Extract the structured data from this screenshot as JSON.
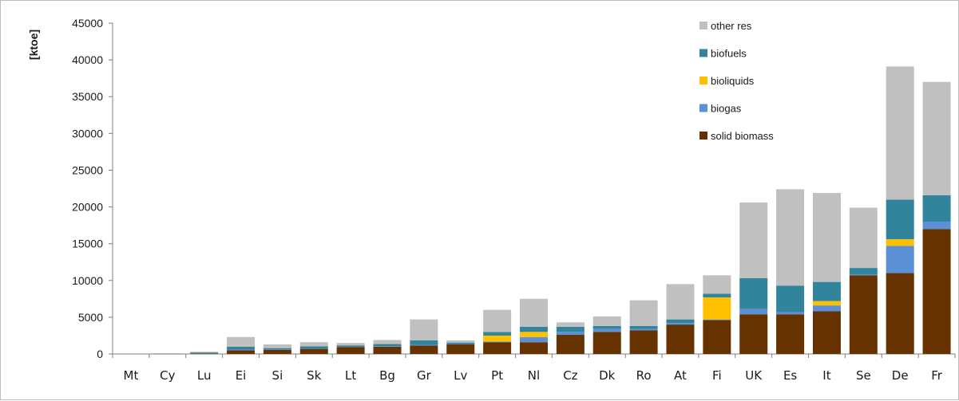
{
  "chart_data": {
    "type": "bar",
    "stacked": true,
    "ylabel": "[ktoe]",
    "ylim": [
      0,
      45000
    ],
    "yticks": [
      0,
      5000,
      10000,
      15000,
      20000,
      25000,
      30000,
      35000,
      40000,
      45000
    ],
    "grid": false,
    "legend_position": "top-right",
    "categories": [
      "Mt",
      "Cy",
      "Lu",
      "Ei",
      "Si",
      "Sk",
      "Lt",
      "Bg",
      "Gr",
      "Lv",
      "Pt",
      "Nl",
      "Cz",
      "Dk",
      "Ro",
      "At",
      "Fi",
      "UK",
      "Es",
      "It",
      "Se",
      "De",
      "Fr"
    ],
    "series": [
      {
        "name": "solid biomass",
        "color": "#663300",
        "values": [
          0,
          20,
          80,
          500,
          550,
          700,
          950,
          1000,
          1150,
          1300,
          1600,
          1600,
          2600,
          3000,
          3200,
          4000,
          4600,
          5400,
          5400,
          5800,
          10700,
          11000,
          17000
        ]
      },
      {
        "name": "biogas",
        "color": "#5b8fd6",
        "values": [
          0,
          0,
          20,
          100,
          50,
          50,
          20,
          50,
          100,
          50,
          100,
          700,
          400,
          400,
          200,
          200,
          100,
          700,
          300,
          800,
          100,
          3700,
          1000
        ]
      },
      {
        "name": "bioliquids",
        "color": "#ffc000",
        "values": [
          0,
          0,
          0,
          0,
          0,
          0,
          0,
          0,
          0,
          0,
          800,
          700,
          0,
          0,
          0,
          0,
          3000,
          0,
          0,
          600,
          0,
          900,
          0
        ]
      },
      {
        "name": "biofuels",
        "color": "#31849b",
        "values": [
          0,
          10,
          100,
          400,
          200,
          300,
          200,
          300,
          600,
          200,
          500,
          700,
          700,
          400,
          400,
          500,
          500,
          4200,
          3600,
          2600,
          900,
          5400,
          3600
        ]
      },
      {
        "name": "other res",
        "color": "#c0c0c0",
        "values": [
          0,
          70,
          100,
          1300,
          500,
          550,
          330,
          550,
          2850,
          300,
          3000,
          3800,
          600,
          1300,
          3500,
          4800,
          2500,
          10300,
          13100,
          12100,
          8200,
          18100,
          15400
        ]
      }
    ],
    "legend_order": [
      "other res",
      "biofuels",
      "bioliquids",
      "biogas",
      "solid biomass"
    ]
  }
}
